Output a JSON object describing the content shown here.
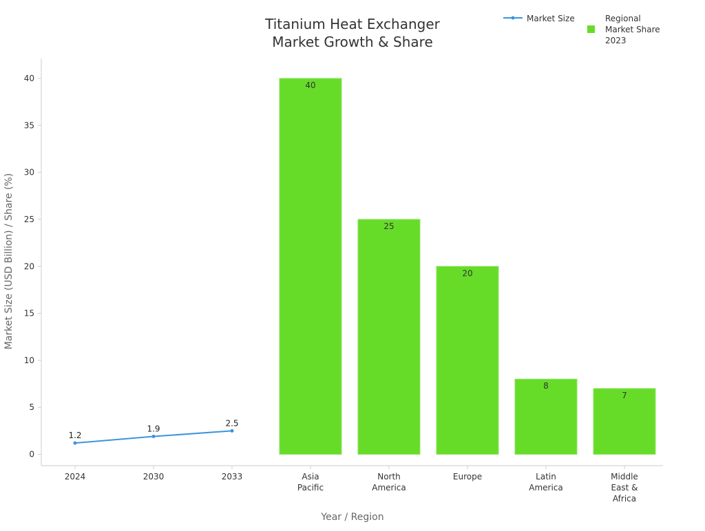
{
  "chart_data": {
    "type": "bar",
    "title_lines": [
      "Titanium Heat Exchanger",
      "Market Growth & Share"
    ],
    "xlabel": "Year / Region",
    "ylabel": "Market Size (USD Billion) / Share (%)",
    "ylim": [
      0,
      42
    ],
    "yticks": [
      0,
      5,
      10,
      15,
      20,
      25,
      30,
      35,
      40
    ],
    "categories": [
      [
        "2024"
      ],
      [
        "2030"
      ],
      [
        "2033"
      ],
      [
        "Asia",
        "Pacific"
      ],
      [
        "North",
        "America"
      ],
      [
        "Europe"
      ],
      [
        "Latin",
        "America"
      ],
      [
        "Middle",
        "East &",
        "Africa"
      ]
    ],
    "line_series": {
      "name": "Market Size",
      "x_index": [
        0,
        1,
        2
      ],
      "values": [
        1.2,
        1.9,
        2.5
      ],
      "labels": [
        "1.2",
        "1.9",
        "2.5"
      ]
    },
    "bar_series": {
      "name_lines": [
        "Regional",
        "Market Share",
        "2023"
      ],
      "x_index": [
        3,
        4,
        5,
        6,
        7
      ],
      "values": [
        40,
        25,
        20,
        8,
        7
      ],
      "labels": [
        "40",
        "25",
        "20",
        "8",
        "7"
      ]
    },
    "legend_position": "top-right",
    "grid": false,
    "colors": {
      "line": "#3a94de",
      "bar": "#66dc29",
      "bar_edge": "#8fe35d",
      "axis": "#cccccc",
      "tick_text": "#333333",
      "label_text": "#666666",
      "title_text": "#333333"
    }
  }
}
